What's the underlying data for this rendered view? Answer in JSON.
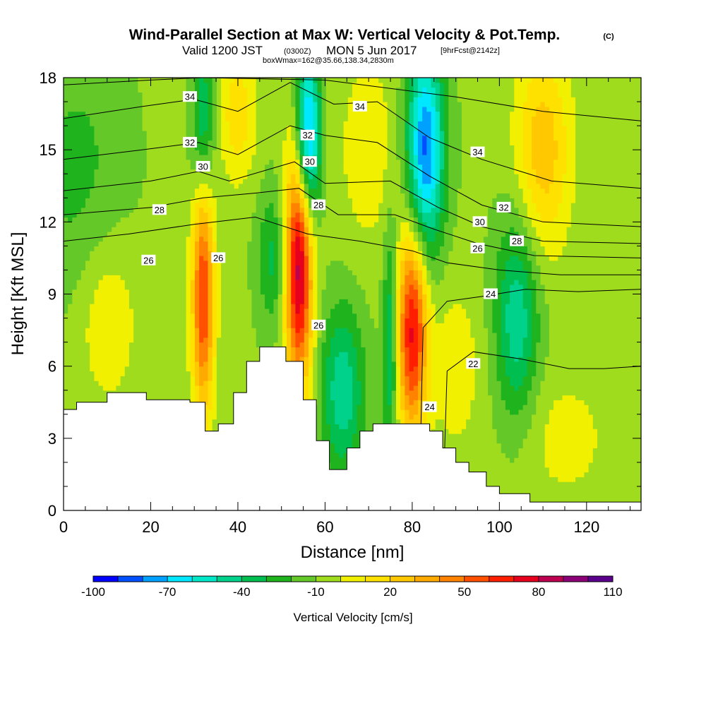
{
  "header": {
    "title": "Wind-Parallel Section at Max W: Vertical Velocity & Pot.Temp.",
    "title_tag": "(C)",
    "valid_prefix": "Valid 1200 JST",
    "valid_utc": "(0300Z)",
    "valid_date": "MON 5 Jun 2017",
    "forecast": "[9hrFcst@2142z]",
    "boxwmax": "boxWmax=162@35.66,138.34,2830m"
  },
  "chart_data": {
    "type": "heatmap",
    "title": "Wind-Parallel Section at Max W: Vertical Velocity & Pot.Temp.",
    "xlabel": "Distance [nm]",
    "ylabel": "Height [Kft MSL]",
    "xlim": [
      0,
      132.5
    ],
    "ylim": [
      0,
      18
    ],
    "x_ticks": [
      0,
      20,
      40,
      60,
      80,
      100,
      120
    ],
    "y_ticks": [
      0,
      3,
      6,
      9,
      12,
      15,
      18
    ],
    "terrain": [
      [
        0,
        4.2
      ],
      [
        3,
        4.5
      ],
      [
        10,
        4.9
      ],
      [
        19,
        4.6
      ],
      [
        29,
        4.5
      ],
      [
        32.5,
        3.3
      ],
      [
        35.5,
        3.6
      ],
      [
        39,
        4.9
      ],
      [
        42,
        6.2
      ],
      [
        45,
        6.8
      ],
      [
        51,
        6.2
      ],
      [
        55,
        4.6
      ],
      [
        58,
        2.9
      ],
      [
        61,
        1.7
      ],
      [
        65,
        2.6
      ],
      [
        68,
        3.3
      ],
      [
        71,
        3.6
      ],
      [
        84,
        3.3
      ],
      [
        87,
        2.6
      ],
      [
        90,
        2.0
      ],
      [
        93,
        1.6
      ],
      [
        97,
        1.0
      ],
      [
        100,
        0.7
      ],
      [
        107,
        0.35
      ],
      [
        132.5,
        0.35
      ]
    ],
    "velocity_features": [
      {
        "x": 32,
        "z": 9.0,
        "w": 70,
        "sx": 1.8,
        "sz": 3.5
      },
      {
        "x": 54,
        "z": 10.3,
        "w": 95,
        "sx": 2.2,
        "sz": 3.6
      },
      {
        "x": 80,
        "z": 7.5,
        "w": 80,
        "sx": 2.4,
        "sz": 3.0
      },
      {
        "x": 56,
        "z": 15.5,
        "w": -80,
        "sx": 2.0,
        "sz": 2.5
      },
      {
        "x": 83,
        "z": 15.0,
        "w": -75,
        "sx": 3.0,
        "sz": 3.0
      },
      {
        "x": 32,
        "z": 16.0,
        "w": -35,
        "sx": 1.8,
        "sz": 2.5
      },
      {
        "x": 64,
        "z": 5.0,
        "w": -40,
        "sx": 3.5,
        "sz": 2.5
      },
      {
        "x": 75,
        "z": 7.0,
        "w": -35,
        "sx": 1.2,
        "sz": 3.5
      },
      {
        "x": 104,
        "z": 8.0,
        "w": -40,
        "sx": 3.5,
        "sz": 3.0
      },
      {
        "x": 48,
        "z": 10.5,
        "w": -25,
        "sx": 2.5,
        "sz": 2.0
      },
      {
        "x": 110,
        "z": 15.0,
        "w": 35,
        "sx": 4.5,
        "sz": 3.0
      },
      {
        "x": 40,
        "z": 16.5,
        "w": 25,
        "sx": 3.0,
        "sz": 2.0
      },
      {
        "x": 70,
        "z": 15.0,
        "w": 15,
        "sx": 5.0,
        "sz": 3.0
      },
      {
        "x": 10,
        "z": 8.0,
        "w": 18,
        "sx": 5.0,
        "sz": 2.5
      },
      {
        "x": 115,
        "z": 3.0,
        "w": 12,
        "sx": 8.0,
        "sz": 2.0
      },
      {
        "x": 90,
        "z": 6.0,
        "w": 15,
        "sx": 4.0,
        "sz": 2.5
      },
      {
        "x": 3,
        "z": 14.0,
        "w": -15,
        "sx": 8.0,
        "sz": 4.0
      }
    ],
    "velocity_background": -8,
    "isentropes": [
      {
        "theta": 22,
        "points": [
          [
            87,
            0
          ],
          [
            88,
            5.8
          ],
          [
            94,
            6.6
          ],
          [
            105,
            6.3
          ],
          [
            116,
            5.9
          ],
          [
            124,
            5.9
          ],
          [
            132.5,
            6.0
          ]
        ]
      },
      {
        "theta": 24,
        "points": [
          [
            82,
            3.5
          ],
          [
            82.5,
            7.6
          ],
          [
            88,
            8.7
          ],
          [
            96,
            8.9
          ],
          [
            106,
            9.2
          ],
          [
            118,
            9.1
          ],
          [
            132.5,
            9.2
          ]
        ]
      },
      {
        "theta": 26,
        "points": [
          [
            0,
            11.2
          ],
          [
            15,
            11.5
          ],
          [
            30,
            11.9
          ],
          [
            44,
            12.2
          ],
          [
            56,
            11.5
          ],
          [
            68,
            11.2
          ],
          [
            80,
            10.8
          ],
          [
            88,
            10.3
          ],
          [
            100,
            10.0
          ],
          [
            114,
            9.8
          ],
          [
            132.5,
            9.8
          ]
        ]
      },
      {
        "theta": 28,
        "points": [
          [
            0,
            12.3
          ],
          [
            20,
            12.6
          ],
          [
            32,
            13.0
          ],
          [
            44,
            13.2
          ],
          [
            54,
            13.4
          ],
          [
            63,
            12.3
          ],
          [
            76,
            12.3
          ],
          [
            85,
            11.7
          ],
          [
            95,
            11.1
          ],
          [
            108,
            10.6
          ],
          [
            132.5,
            10.5
          ]
        ]
      },
      {
        "theta": 30,
        "points": [
          [
            0,
            13.3
          ],
          [
            20,
            13.7
          ],
          [
            31,
            14.1
          ],
          [
            38,
            13.7
          ],
          [
            53,
            14.5
          ],
          [
            60,
            13.6
          ],
          [
            75,
            13.7
          ],
          [
            86,
            12.6
          ],
          [
            96,
            11.8
          ],
          [
            110,
            11.2
          ],
          [
            132.5,
            11.1
          ]
        ]
      },
      {
        "theta": 32,
        "points": [
          [
            0,
            14.6
          ],
          [
            18,
            15.0
          ],
          [
            31,
            15.3
          ],
          [
            40,
            14.8
          ],
          [
            52,
            16.0
          ],
          [
            60,
            15.6
          ],
          [
            72,
            15.3
          ],
          [
            84,
            13.9
          ],
          [
            96,
            12.7
          ],
          [
            110,
            12.0
          ],
          [
            132.5,
            11.8
          ]
        ]
      },
      {
        "theta": 34,
        "points": [
          [
            0,
            16.3
          ],
          [
            18,
            16.8
          ],
          [
            30,
            17.1
          ],
          [
            40,
            16.6
          ],
          [
            52,
            17.8
          ],
          [
            62,
            16.9
          ],
          [
            72,
            17.0
          ],
          [
            84,
            15.5
          ],
          [
            96,
            14.6
          ],
          [
            112,
            13.7
          ],
          [
            132.5,
            13.4
          ]
        ]
      },
      {
        "theta": 36,
        "points": [
          [
            0,
            17.7
          ],
          [
            20,
            17.9
          ],
          [
            32,
            18.0
          ],
          [
            60,
            17.9
          ],
          [
            90,
            17.2
          ],
          [
            110,
            16.6
          ],
          [
            132.5,
            16.2
          ]
        ]
      }
    ],
    "contour_labels": [
      {
        "text": "34",
        "x": 29,
        "y": 17.2
      },
      {
        "text": "32",
        "x": 29,
        "y": 15.3
      },
      {
        "text": "30",
        "x": 32,
        "y": 14.3
      },
      {
        "text": "28",
        "x": 22,
        "y": 12.5
      },
      {
        "text": "26",
        "x": 19.5,
        "y": 10.4
      },
      {
        "text": "26",
        "x": 35.5,
        "y": 10.5
      },
      {
        "text": "34",
        "x": 68,
        "y": 16.8
      },
      {
        "text": "32",
        "x": 56,
        "y": 15.6
      },
      {
        "text": "30",
        "x": 56.5,
        "y": 14.5
      },
      {
        "text": "28",
        "x": 58.5,
        "y": 12.7
      },
      {
        "text": "26",
        "x": 58.5,
        "y": 7.7
      },
      {
        "text": "34",
        "x": 95,
        "y": 14.9
      },
      {
        "text": "32",
        "x": 101,
        "y": 12.6
      },
      {
        "text": "30",
        "x": 95.5,
        "y": 12.0
      },
      {
        "text": "28",
        "x": 104,
        "y": 11.2
      },
      {
        "text": "26",
        "x": 95,
        "y": 10.9
      },
      {
        "text": "24",
        "x": 98,
        "y": 9.0
      },
      {
        "text": "22",
        "x": 94,
        "y": 6.1
      },
      {
        "text": "24",
        "x": 84,
        "y": 4.3
      }
    ],
    "colorbar": {
      "label": "Vertical Velocity [cm/s]",
      "tick_labels": [
        "-100",
        "-70",
        "-40",
        "-10",
        "20",
        "50",
        "80",
        "110"
      ],
      "min": -100,
      "max": 110,
      "step": 10,
      "colors": [
        "#0000ff",
        "#0050ff",
        "#00a0ff",
        "#00e8ff",
        "#00e8c8",
        "#00d28c",
        "#00be50",
        "#1fb41e",
        "#64c828",
        "#a0dc1e",
        "#f0f000",
        "#ffe100",
        "#ffc800",
        "#ffaa00",
        "#ff8200",
        "#ff5000",
        "#ff1e00",
        "#e6001e",
        "#be0050",
        "#8c0078",
        "#5a008c"
      ]
    }
  }
}
